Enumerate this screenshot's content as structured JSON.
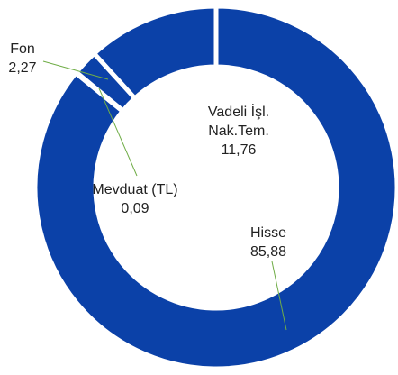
{
  "chart_data": {
    "type": "donut",
    "categories": [
      "Hisse",
      "Mevduat (TL)",
      "Fon",
      "Vadeli İşl. Nak.Tem."
    ],
    "values": [
      85.88,
      0.09,
      2.27,
      11.76
    ],
    "value_labels": [
      "85,88",
      "0,09",
      "2,27",
      "11,76"
    ],
    "color": "#0b41a8"
  }
}
